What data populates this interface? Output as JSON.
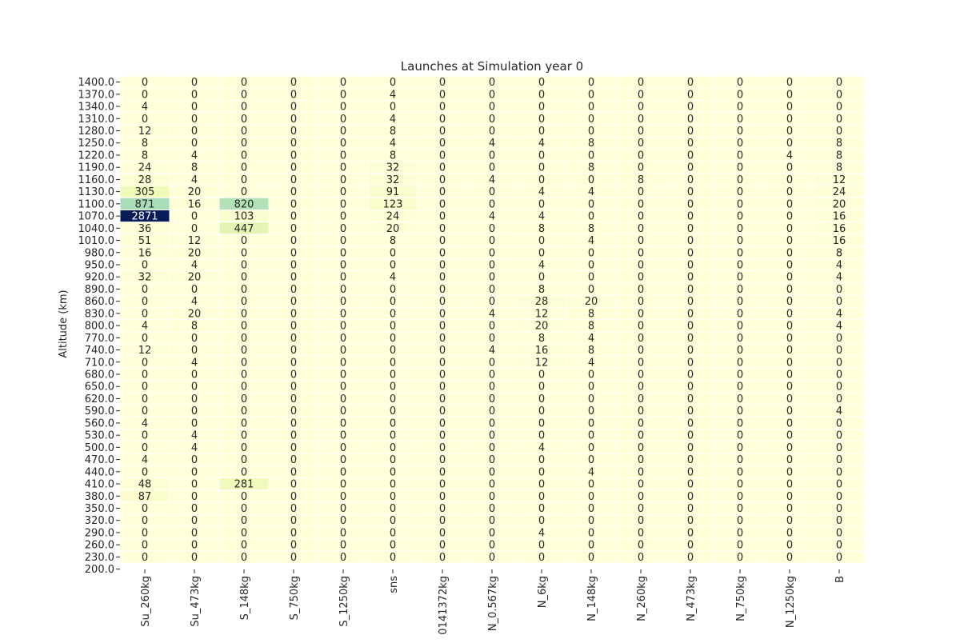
{
  "chart_data": {
    "type": "heatmap",
    "title": "Launches at Simulation year 0",
    "ylabel": "Altitude (km)",
    "xlabel": "",
    "colormap": "YlGnBu",
    "color_range": [
      0,
      2871
    ],
    "columns": [
      "Su_260kg",
      "Su_473kg",
      "S_148kg",
      "S_750kg",
      "S_1250kg",
      "sns",
      "0141372kg",
      "N_0.567kg",
      "N_6kg",
      "N_148kg",
      "N_260kg",
      "N_473kg",
      "N_750kg",
      "N_1250kg",
      "B"
    ],
    "y_tick_labels": [
      "1400.0",
      "1370.0",
      "1340.0",
      "1310.0",
      "1280.0",
      "1250.0",
      "1220.0",
      "1190.0",
      "1160.0",
      "1130.0",
      "1100.0",
      "1070.0",
      "1040.0",
      "1010.0",
      "980.0",
      "950.0",
      "920.0",
      "890.0",
      "860.0",
      "830.0",
      "800.0",
      "770.0",
      "740.0",
      "710.0",
      "680.0",
      "650.0",
      "620.0",
      "590.0",
      "560.0",
      "530.0",
      "500.0",
      "470.0",
      "440.0",
      "410.0",
      "380.0",
      "350.0",
      "320.0",
      "290.0",
      "260.0",
      "230.0",
      "200.0"
    ],
    "values": [
      [
        0,
        0,
        0,
        0,
        0,
        0,
        0,
        0,
        0,
        0,
        0,
        0,
        0,
        0,
        0
      ],
      [
        0,
        0,
        0,
        0,
        0,
        4,
        0,
        0,
        0,
        0,
        0,
        0,
        0,
        0,
        0
      ],
      [
        4,
        0,
        0,
        0,
        0,
        0,
        0,
        0,
        0,
        0,
        0,
        0,
        0,
        0,
        0
      ],
      [
        0,
        0,
        0,
        0,
        0,
        4,
        0,
        0,
        0,
        0,
        0,
        0,
        0,
        0,
        0
      ],
      [
        12,
        0,
        0,
        0,
        0,
        8,
        0,
        0,
        0,
        0,
        0,
        0,
        0,
        0,
        0
      ],
      [
        8,
        0,
        0,
        0,
        0,
        4,
        0,
        4,
        4,
        8,
        0,
        0,
        0,
        0,
        8
      ],
      [
        8,
        4,
        0,
        0,
        0,
        8,
        0,
        0,
        0,
        0,
        0,
        0,
        0,
        4,
        8
      ],
      [
        24,
        8,
        0,
        0,
        0,
        32,
        0,
        0,
        0,
        8,
        0,
        0,
        0,
        0,
        8
      ],
      [
        28,
        4,
        0,
        0,
        0,
        32,
        0,
        4,
        0,
        0,
        8,
        0,
        0,
        0,
        12
      ],
      [
        305,
        20,
        0,
        0,
        0,
        91,
        0,
        0,
        4,
        4,
        0,
        0,
        0,
        0,
        24
      ],
      [
        871,
        16,
        820,
        0,
        0,
        123,
        0,
        0,
        0,
        0,
        0,
        0,
        0,
        0,
        20
      ],
      [
        2871,
        0,
        103,
        0,
        0,
        24,
        0,
        4,
        4,
        0,
        0,
        0,
        0,
        0,
        16
      ],
      [
        36,
        0,
        447,
        0,
        0,
        20,
        0,
        0,
        8,
        8,
        0,
        0,
        0,
        0,
        16
      ],
      [
        51,
        12,
        0,
        0,
        0,
        8,
        0,
        0,
        0,
        4,
        0,
        0,
        0,
        0,
        16
      ],
      [
        16,
        20,
        0,
        0,
        0,
        0,
        0,
        0,
        0,
        0,
        0,
        0,
        0,
        0,
        8
      ],
      [
        0,
        4,
        0,
        0,
        0,
        0,
        0,
        0,
        4,
        0,
        0,
        0,
        0,
        0,
        4
      ],
      [
        32,
        20,
        0,
        0,
        0,
        4,
        0,
        0,
        0,
        0,
        0,
        0,
        0,
        0,
        4
      ],
      [
        0,
        0,
        0,
        0,
        0,
        0,
        0,
        0,
        8,
        0,
        0,
        0,
        0,
        0,
        0
      ],
      [
        0,
        4,
        0,
        0,
        0,
        0,
        0,
        0,
        28,
        20,
        0,
        0,
        0,
        0,
        0
      ],
      [
        0,
        20,
        0,
        0,
        0,
        0,
        0,
        4,
        12,
        8,
        0,
        0,
        0,
        0,
        4
      ],
      [
        4,
        8,
        0,
        0,
        0,
        0,
        0,
        0,
        20,
        8,
        0,
        0,
        0,
        0,
        4
      ],
      [
        0,
        0,
        0,
        0,
        0,
        0,
        0,
        0,
        8,
        4,
        0,
        0,
        0,
        0,
        0
      ],
      [
        12,
        0,
        0,
        0,
        0,
        0,
        0,
        4,
        16,
        8,
        0,
        0,
        0,
        0,
        0
      ],
      [
        0,
        4,
        0,
        0,
        0,
        0,
        0,
        0,
        12,
        4,
        0,
        0,
        0,
        0,
        0
      ],
      [
        0,
        0,
        0,
        0,
        0,
        0,
        0,
        0,
        0,
        0,
        0,
        0,
        0,
        0,
        0
      ],
      [
        0,
        0,
        0,
        0,
        0,
        0,
        0,
        0,
        0,
        0,
        0,
        0,
        0,
        0,
        0
      ],
      [
        0,
        0,
        0,
        0,
        0,
        0,
        0,
        0,
        0,
        0,
        0,
        0,
        0,
        0,
        0
      ],
      [
        0,
        0,
        0,
        0,
        0,
        0,
        0,
        0,
        0,
        0,
        0,
        0,
        0,
        0,
        4
      ],
      [
        4,
        0,
        0,
        0,
        0,
        0,
        0,
        0,
        0,
        0,
        0,
        0,
        0,
        0,
        0
      ],
      [
        0,
        4,
        0,
        0,
        0,
        0,
        0,
        0,
        0,
        0,
        0,
        0,
        0,
        0,
        0
      ],
      [
        0,
        4,
        0,
        0,
        0,
        0,
        0,
        0,
        4,
        0,
        0,
        0,
        0,
        0,
        0
      ],
      [
        4,
        0,
        0,
        0,
        0,
        0,
        0,
        0,
        0,
        0,
        0,
        0,
        0,
        0,
        0
      ],
      [
        0,
        0,
        0,
        0,
        0,
        0,
        0,
        0,
        0,
        4,
        0,
        0,
        0,
        0,
        0
      ],
      [
        48,
        0,
        281,
        0,
        0,
        0,
        0,
        0,
        0,
        0,
        0,
        0,
        0,
        0,
        0
      ],
      [
        87,
        0,
        0,
        0,
        0,
        0,
        0,
        0,
        0,
        0,
        0,
        0,
        0,
        0,
        0
      ],
      [
        0,
        0,
        0,
        0,
        0,
        0,
        0,
        0,
        0,
        0,
        0,
        0,
        0,
        0,
        0
      ],
      [
        0,
        0,
        0,
        0,
        0,
        0,
        0,
        0,
        0,
        0,
        0,
        0,
        0,
        0,
        0
      ],
      [
        0,
        0,
        0,
        0,
        0,
        0,
        0,
        0,
        4,
        0,
        0,
        0,
        0,
        0,
        0
      ],
      [
        0,
        0,
        0,
        0,
        0,
        0,
        0,
        0,
        0,
        0,
        0,
        0,
        0,
        0,
        0
      ],
      [
        0,
        0,
        0,
        0,
        0,
        0,
        0,
        0,
        0,
        0,
        0,
        0,
        0,
        0,
        0
      ]
    ],
    "grid": false,
    "colorbar": false
  }
}
